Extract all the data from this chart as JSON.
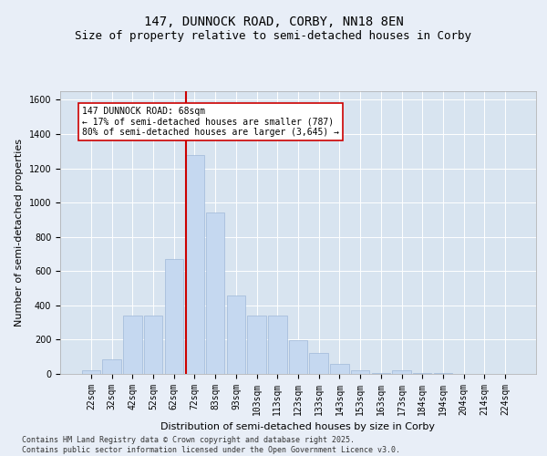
{
  "title": "147, DUNNOCK ROAD, CORBY, NN18 8EN",
  "subtitle": "Size of property relative to semi-detached houses in Corby",
  "xlabel": "Distribution of semi-detached houses by size in Corby",
  "ylabel": "Number of semi-detached properties",
  "categories": [
    "22sqm",
    "32sqm",
    "42sqm",
    "52sqm",
    "62sqm",
    "72sqm",
    "83sqm",
    "93sqm",
    "103sqm",
    "113sqm",
    "123sqm",
    "133sqm",
    "143sqm",
    "153sqm",
    "163sqm",
    "173sqm",
    "184sqm",
    "194sqm",
    "204sqm",
    "214sqm",
    "224sqm"
  ],
  "values": [
    20,
    85,
    340,
    340,
    670,
    1280,
    940,
    460,
    340,
    340,
    195,
    120,
    60,
    20,
    5,
    20,
    5,
    5,
    2,
    1,
    1
  ],
  "bar_color": "#c5d8f0",
  "bar_edge_color": "#a0b8d8",
  "vline_color": "#cc0000",
  "vline_x_index": 4.575,
  "annotation_text": "147 DUNNOCK ROAD: 68sqm\n← 17% of semi-detached houses are smaller (787)\n80% of semi-detached houses are larger (3,645) →",
  "annotation_box_facecolor": "#ffffff",
  "annotation_box_edgecolor": "#cc0000",
  "ylim": [
    0,
    1650
  ],
  "yticks": [
    0,
    200,
    400,
    600,
    800,
    1000,
    1200,
    1400,
    1600
  ],
  "bg_color": "#e8eef7",
  "plot_bg_color": "#d8e4f0",
  "footer": "Contains HM Land Registry data © Crown copyright and database right 2025.\nContains public sector information licensed under the Open Government Licence v3.0.",
  "title_fontsize": 10,
  "subtitle_fontsize": 9,
  "xlabel_fontsize": 8,
  "ylabel_fontsize": 8,
  "tick_fontsize": 7,
  "annotation_fontsize": 7,
  "footer_fontsize": 6
}
